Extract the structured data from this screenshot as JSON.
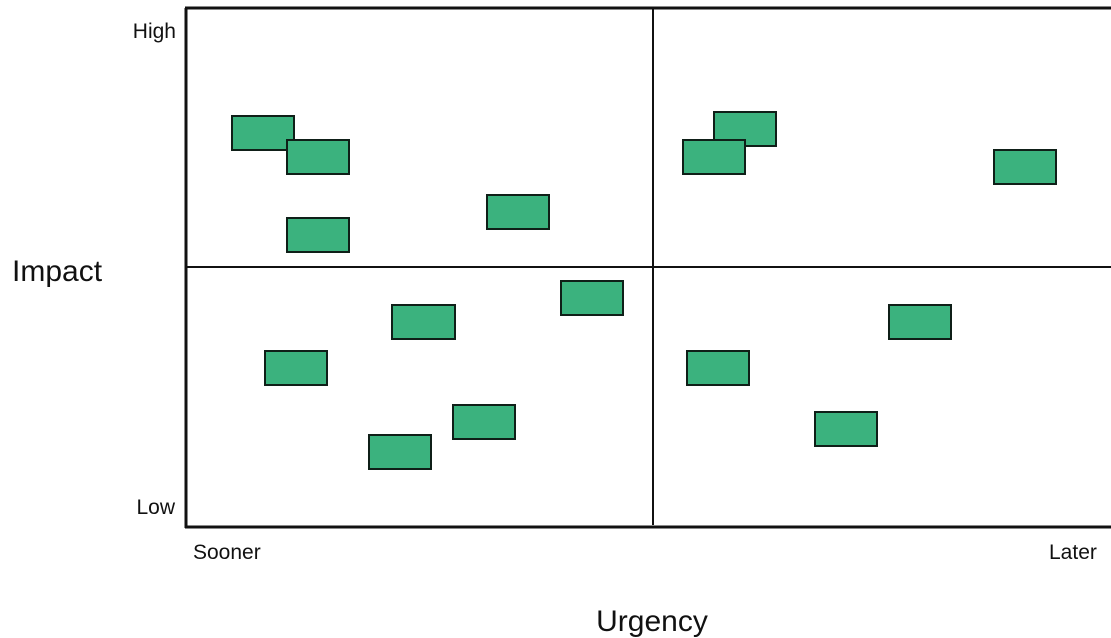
{
  "y_axis": {
    "title": "Impact",
    "high_label": "High",
    "low_label": "Low"
  },
  "x_axis": {
    "title": "Urgency",
    "low_label": "Sooner",
    "high_label": "Later"
  },
  "colors": {
    "item_fill": "#3bb27e",
    "item_stroke": "#0f1f18",
    "frame": "#111111",
    "background": "#ffffff"
  }
}
